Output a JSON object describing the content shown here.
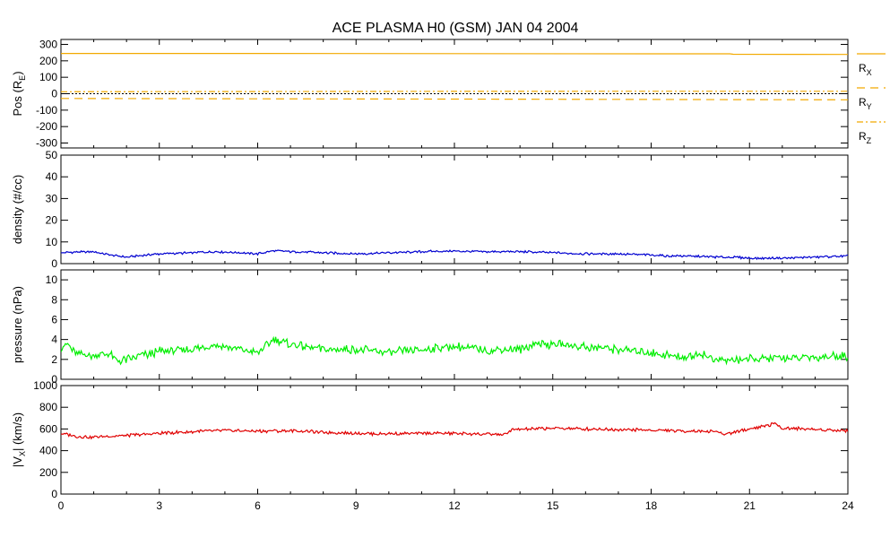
{
  "title": "ACE PLASMA H0 (GSM)   JAN 04 2004",
  "chart_data": [
    {
      "type": "line",
      "ylabel": "Pos (R",
      "ylabel_sub": "E",
      "ylabel_suffix": ")",
      "ylim": [
        -330,
        330
      ],
      "yticks": [
        300,
        200,
        100,
        0,
        -100,
        -200,
        -300
      ],
      "zero_line": true,
      "x": [
        0,
        6,
        12,
        18,
        20.4,
        20.5,
        24
      ],
      "series": [
        {
          "name": "RX",
          "label_main": "R",
          "label_sub": "X",
          "color": "#f2a900",
          "dash": "",
          "values": [
            245,
            245,
            244,
            243,
            243,
            240,
            239
          ]
        },
        {
          "name": "RY",
          "label_main": "R",
          "label_sub": "Y",
          "color": "#f2a900",
          "dash": "9,6",
          "values": [
            -29,
            -31,
            -33,
            -35,
            -36,
            -36,
            -37
          ]
        },
        {
          "name": "RZ",
          "label_main": "R",
          "label_sub": "Z",
          "color": "#f2a900",
          "dash": "7,3,2,3",
          "values": [
            12,
            13,
            14,
            15,
            15,
            15,
            15
          ]
        }
      ]
    },
    {
      "type": "line",
      "ylabel": "density (#/cc)",
      "ylim": [
        0,
        50
      ],
      "yticks": [
        0,
        10,
        20,
        30,
        40,
        50
      ],
      "x": [
        0,
        1,
        1.5,
        2,
        3,
        4,
        4.7,
        5.5,
        6,
        6.5,
        7,
        8,
        9,
        10,
        11,
        12,
        13,
        14,
        15,
        16,
        17,
        18,
        18.5,
        19,
        20,
        20.5,
        21,
        22,
        23,
        24
      ],
      "series": [
        {
          "name": "density",
          "color": "#0000d0",
          "values": [
            5.0,
            5.5,
            4.0,
            3.0,
            4.5,
            5.0,
            5.5,
            5.0,
            4.5,
            6.0,
            5.5,
            5.0,
            4.5,
            5.0,
            5.5,
            5.8,
            5.5,
            5.5,
            5.0,
            4.5,
            4.5,
            4.0,
            3.5,
            3.5,
            3.0,
            3.0,
            2.5,
            2.5,
            3.0,
            3.5
          ]
        }
      ]
    },
    {
      "type": "line",
      "ylabel": "pressure (nPa)",
      "ylim": [
        0,
        11
      ],
      "yticks": [
        0,
        2,
        4,
        6,
        8,
        10
      ],
      "x": [
        0,
        0.2,
        0.5,
        1,
        1.5,
        1.7,
        2,
        3,
        4,
        4.7,
        5,
        5.5,
        6,
        6.5,
        7,
        8,
        9,
        10,
        11,
        12,
        13,
        14,
        14.5,
        15,
        16,
        17,
        18,
        19,
        19.5,
        20,
        21,
        22,
        23,
        24
      ],
      "series": [
        {
          "name": "pressure",
          "color": "#00ee00",
          "values": [
            3.2,
            3.5,
            2.5,
            2.4,
            2.5,
            1.8,
            2.0,
            2.8,
            3.0,
            3.5,
            3.3,
            3.0,
            2.6,
            4.0,
            3.5,
            3.0,
            3.0,
            2.7,
            3.0,
            3.3,
            2.9,
            3.0,
            3.6,
            3.5,
            3.3,
            3.0,
            2.7,
            2.2,
            2.6,
            1.9,
            2.0,
            2.1,
            2.2,
            2.4
          ]
        }
      ]
    },
    {
      "type": "line",
      "ylabel": "|V",
      "ylabel_sub": "X",
      "ylabel_suffix": "| (km/s)",
      "ylim": [
        0,
        1000
      ],
      "yticks": [
        0,
        200,
        400,
        600,
        800,
        1000
      ],
      "x": [
        0,
        0.5,
        1,
        2,
        3,
        4,
        5,
        6,
        7,
        8,
        9,
        10,
        11,
        12,
        13,
        13.6,
        13.7,
        15,
        16,
        17,
        18,
        19,
        20,
        20.2,
        21,
        21.8,
        22,
        23,
        24
      ],
      "series": [
        {
          "name": "vx",
          "color": "#e00000",
          "values": [
            560,
            530,
            525,
            540,
            560,
            575,
            585,
            580,
            585,
            570,
            560,
            555,
            560,
            560,
            550,
            550,
            590,
            610,
            600,
            595,
            590,
            580,
            580,
            550,
            600,
            650,
            610,
            595,
            585
          ]
        }
      ]
    }
  ],
  "xaxis": {
    "xlim": [
      0,
      24
    ],
    "ticks": [
      0,
      3,
      6,
      9,
      12,
      15,
      18,
      21,
      24
    ]
  }
}
